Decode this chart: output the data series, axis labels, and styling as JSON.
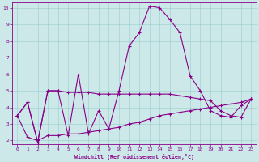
{
  "xlabel": "Windchill (Refroidissement éolien,°C)",
  "background_color": "#cce8e8",
  "line_color": "#880088",
  "xlim": [
    -0.5,
    23.5
  ],
  "ylim": [
    1.8,
    10.3
  ],
  "yticks": [
    2,
    3,
    4,
    5,
    6,
    7,
    8,
    9,
    10
  ],
  "xticks": [
    0,
    1,
    2,
    3,
    4,
    5,
    6,
    7,
    8,
    9,
    10,
    11,
    12,
    13,
    14,
    15,
    16,
    17,
    18,
    19,
    20,
    21,
    22,
    23
  ],
  "line1_x": [
    0,
    1,
    2,
    3,
    4,
    5,
    6,
    7,
    8,
    9,
    10,
    11,
    12,
    13,
    14,
    15,
    16,
    17,
    18,
    19,
    20,
    21,
    22,
    23
  ],
  "line1_y": [
    3.5,
    4.3,
    1.9,
    5.0,
    5.0,
    4.9,
    4.9,
    4.9,
    4.8,
    4.8,
    4.8,
    4.8,
    4.8,
    4.8,
    4.8,
    4.8,
    4.7,
    4.6,
    4.5,
    4.4,
    3.8,
    3.5,
    3.4,
    4.5
  ],
  "line2_x": [
    0,
    1,
    2,
    3,
    4,
    5,
    6,
    7,
    8,
    9,
    10,
    11,
    12,
    13,
    14,
    15,
    16,
    17,
    18,
    19,
    20,
    21,
    22,
    23
  ],
  "line2_y": [
    3.5,
    4.3,
    1.9,
    5.0,
    5.0,
    2.3,
    6.0,
    2.4,
    3.8,
    2.7,
    5.0,
    7.7,
    8.5,
    10.1,
    10.0,
    9.3,
    8.5,
    5.9,
    5.0,
    3.8,
    3.5,
    3.4,
    4.1,
    4.5
  ],
  "line3_x": [
    0,
    1,
    2,
    3,
    4,
    5,
    6,
    7,
    8,
    9,
    10,
    11,
    12,
    13,
    14,
    15,
    16,
    17,
    18,
    19,
    20,
    21,
    22,
    23
  ],
  "line3_y": [
    3.5,
    2.2,
    2.0,
    2.3,
    2.3,
    2.4,
    2.4,
    2.5,
    2.6,
    2.7,
    2.8,
    3.0,
    3.1,
    3.3,
    3.5,
    3.6,
    3.7,
    3.8,
    3.9,
    4.0,
    4.1,
    4.2,
    4.3,
    4.5
  ]
}
